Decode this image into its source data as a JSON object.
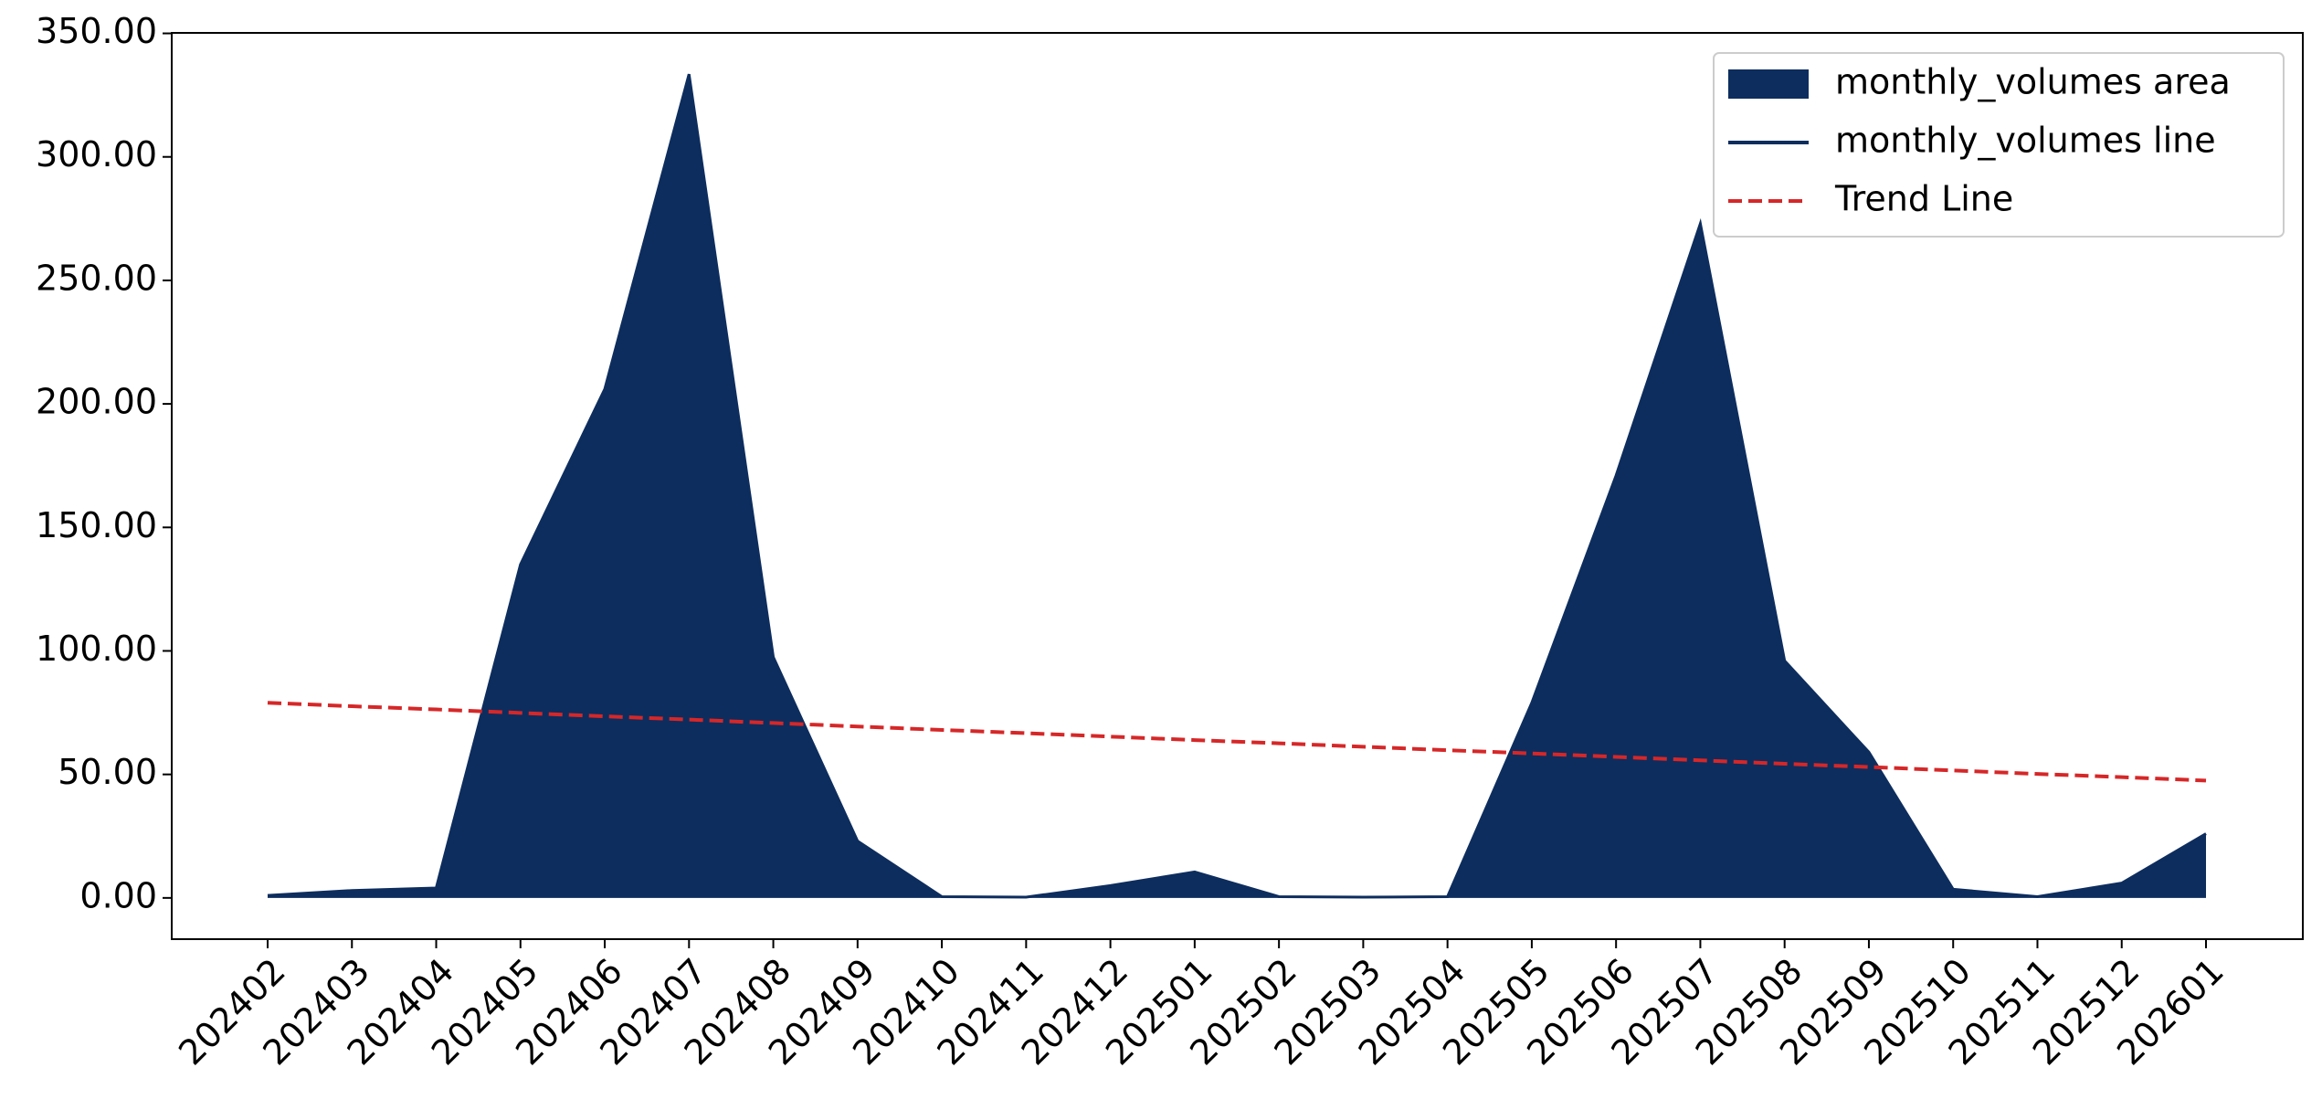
{
  "chart_data": {
    "type": "area",
    "categories": [
      "202402",
      "202403",
      "202404",
      "202405",
      "202406",
      "202407",
      "202408",
      "202409",
      "202410",
      "202411",
      "202412",
      "202501",
      "202502",
      "202503",
      "202504",
      "202505",
      "202506",
      "202507",
      "202508",
      "202509",
      "202510",
      "202511",
      "202512",
      "202601"
    ],
    "series": [
      {
        "name": "monthly_volumes area",
        "type": "area",
        "color": "#0d2d5e",
        "values": [
          1,
          3,
          4,
          135,
          206,
          333.5,
          97.5,
          23,
          0.5,
          0.3,
          5,
          10.5,
          0.5,
          0.3,
          0.5,
          79,
          171,
          273,
          96,
          59,
          3.5,
          0.5,
          6,
          26
        ]
      },
      {
        "name": "monthly_volumes line",
        "type": "line",
        "color": "#0d2d5e",
        "values": [
          1,
          3,
          4,
          135,
          206,
          333.5,
          97.5,
          23,
          0.5,
          0.3,
          5,
          10.5,
          0.5,
          0.3,
          0.5,
          79,
          171,
          273,
          96,
          59,
          3.5,
          0.5,
          6,
          26
        ]
      },
      {
        "name": "Trend Line",
        "type": "line",
        "dashed": true,
        "color": "#d62728",
        "values": [
          79,
          77.6,
          76.3,
          74.9,
          73.5,
          72.2,
          70.8,
          69.4,
          68,
          66.7,
          65.3,
          63.9,
          62.6,
          61.2,
          59.8,
          58.5,
          57.1,
          55.7,
          54.3,
          53,
          51.6,
          50.2,
          48.9,
          47.5
        ]
      }
    ],
    "ylim": [
      -16.7,
      350.2
    ],
    "yticks": [
      {
        "value": 0,
        "label": "0.00"
      },
      {
        "value": 50,
        "label": "50.00"
      },
      {
        "value": 100,
        "label": "100.00"
      },
      {
        "value": 150,
        "label": "150.00"
      },
      {
        "value": 200,
        "label": "200.00"
      },
      {
        "value": 250,
        "label": "250.00"
      },
      {
        "value": 300,
        "label": "300.00"
      },
      {
        "value": 350,
        "label": "350.00"
      }
    ],
    "legend": "upper right"
  }
}
